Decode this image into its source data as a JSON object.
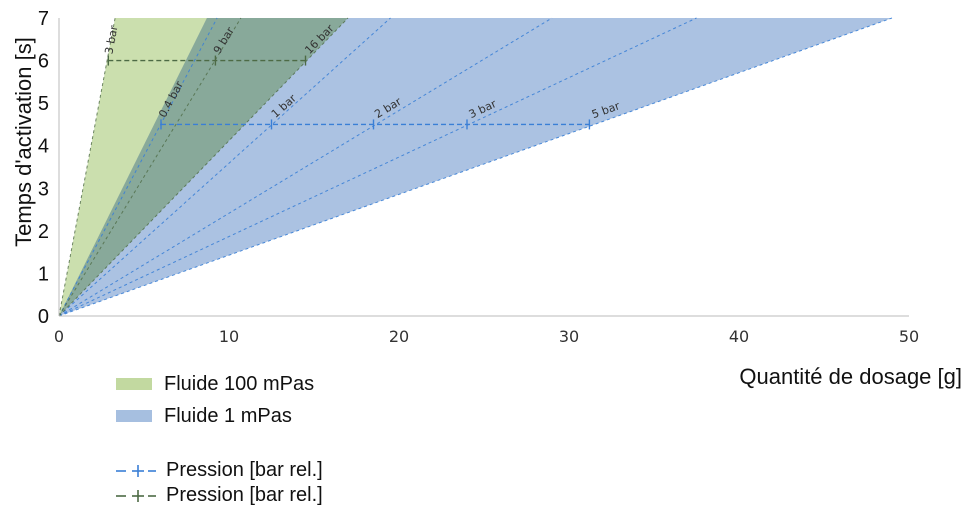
{
  "chart_data": {
    "type": "area",
    "xlabel": "Quantité de dosage [g]",
    "ylabel": "Temps d'activation [s]",
    "xlim": [
      0,
      50
    ],
    "ylim": [
      0,
      7
    ],
    "x_ticks": [
      "0",
      "10",
      "20",
      "30",
      "40",
      "50"
    ],
    "y_ticks": [
      "0",
      "1",
      "2",
      "3",
      "4",
      "5",
      "6",
      "7"
    ],
    "grid": false,
    "legend_placement": "bottom-left",
    "bands": [
      {
        "name": "Fluide 100 mPas",
        "color": "#c2d9a0",
        "x_at_top_start": 3.3,
        "x_at_top_end": 17.0
      },
      {
        "name": "Fluide 1 mPas",
        "color": "#a6bfe0",
        "x_at_top_start": 8.7,
        "x_at_top_end": 49.0
      }
    ],
    "series": [
      {
        "name": "Pression [bar rel.]",
        "color": "#3a7fd6",
        "style": "dash-plus",
        "labels": [
          "0.4 bar",
          "1 bar",
          "2 bar",
          "3 bar",
          "5 bar"
        ],
        "y": 4.5,
        "x": [
          6.0,
          12.5,
          18.5,
          24.0,
          31.2
        ],
        "ray_x_at_top": [
          9.3,
          19.5,
          29.0,
          37.5,
          49.0
        ]
      },
      {
        "name": "Pression [bar rel.]",
        "color": "#4d6a45",
        "style": "dash-plus",
        "labels": [
          "3 bar",
          "9 bar",
          "16 bar"
        ],
        "y": 6.0,
        "x": [
          2.9,
          9.2,
          14.5
        ],
        "ray_x_at_top": [
          3.3,
          10.7,
          17.0
        ]
      }
    ]
  },
  "legend": {
    "items": [
      {
        "label": "Fluide 100 mPas",
        "color": "#c2d9a0",
        "kind": "swatch"
      },
      {
        "label": "Fluide 1 mPas",
        "color": "#a6bfe0",
        "kind": "swatch"
      },
      {
        "label": "Pression [bar rel.]",
        "color": "#3a7fd6",
        "kind": "line"
      },
      {
        "label": "Pression [bar rel.]",
        "color": "#4d6a45",
        "kind": "line"
      }
    ]
  }
}
